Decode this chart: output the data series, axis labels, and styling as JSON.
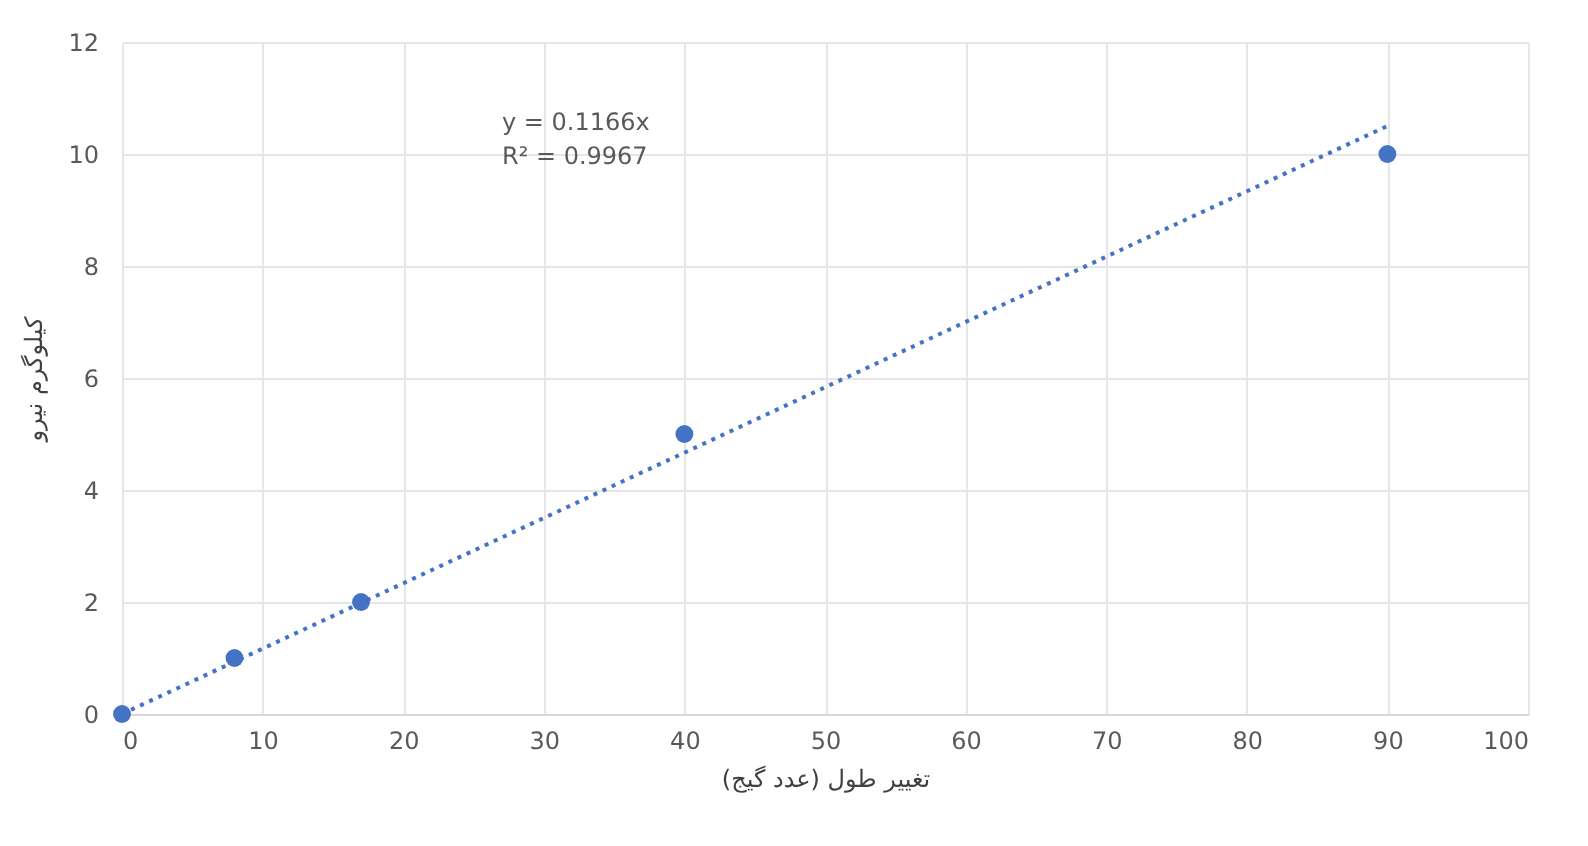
{
  "chart_data": {
    "type": "scatter",
    "xlabel": "تغییر طول (عدد گیج)",
    "ylabel": "کیلوگرم نیرو",
    "annotations": [
      "y = 0.1166x",
      "R² = 0.9967"
    ],
    "series": [
      {
        "color": "#4472c4",
        "x": [
          0,
          8,
          17,
          40,
          90
        ],
        "values": [
          0,
          1,
          2,
          5,
          10
        ],
        "marker": "circle"
      },
      {
        "type": "line",
        "color": "#4472c4",
        "x": [
          0,
          90
        ],
        "values": [
          0,
          10.5
        ],
        "line_style": "dotted",
        "marker": "none"
      }
    ],
    "xlim": [
      0,
      100
    ],
    "xticks": [
      0,
      10,
      20,
      30,
      40,
      50,
      60,
      70,
      80,
      90,
      100
    ],
    "ylim": [
      0,
      12
    ],
    "yticks": [
      0,
      2,
      4,
      6,
      8,
      10,
      12
    ],
    "grid": true
  }
}
